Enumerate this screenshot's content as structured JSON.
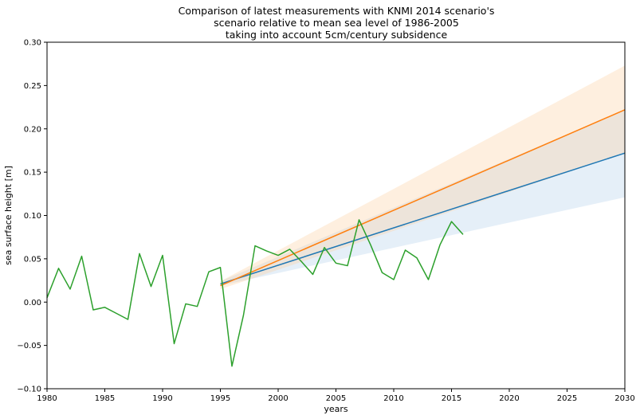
{
  "chart_data": {
    "type": "line",
    "title_lines": [
      "Comparison of latest measurements with KNMI 2014 scenario's",
      "scenario relative to mean sea level of 1986-2005",
      "taking into account 5cm/century subsidence"
    ],
    "xlabel": "years",
    "ylabel": "sea surface height [m]",
    "xlim": [
      1980,
      2030
    ],
    "ylim": [
      -0.1,
      0.3
    ],
    "x_ticks": [
      1980,
      1985,
      1990,
      1995,
      2000,
      2005,
      2010,
      2015,
      2020,
      2025,
      2030
    ],
    "y_ticks": [
      -0.1,
      -0.05,
      0.0,
      0.05,
      0.1,
      0.15,
      0.2,
      0.25,
      0.3
    ],
    "x_tick_labels": [
      "1980",
      "1985",
      "1990",
      "1995",
      "2000",
      "2005",
      "2010",
      "2015",
      "2020",
      "2025",
      "2030"
    ],
    "y_tick_labels": [
      "−0.10",
      "−0.05",
      "0.00",
      "0.05",
      "0.10",
      "0.15",
      "0.20",
      "0.25",
      "0.30"
    ],
    "grid": false,
    "legend": "none",
    "measurements": {
      "color": "#2ca02c",
      "x": [
        1980,
        1981,
        1982,
        1983,
        1984,
        1985,
        1986,
        1987,
        1988,
        1989,
        1990,
        1991,
        1992,
        1993,
        1994,
        1995,
        1996,
        1997,
        1998,
        1999,
        2000,
        2001,
        2002,
        2003,
        2004,
        2005,
        2006,
        2007,
        2008,
        2009,
        2010,
        2011,
        2012,
        2013,
        2014,
        2015,
        2016
      ],
      "y": [
        0.005,
        0.039,
        0.015,
        0.053,
        -0.009,
        -0.006,
        -0.013,
        -0.02,
        0.056,
        0.018,
        0.054,
        -0.048,
        -0.002,
        -0.005,
        0.035,
        0.04,
        -0.074,
        -0.015,
        0.065,
        0.059,
        0.054,
        0.061,
        0.047,
        0.032,
        0.063,
        0.045,
        0.042,
        0.095,
        0.066,
        0.034,
        0.026,
        0.06,
        0.051,
        0.026,
        0.066,
        0.093,
        0.078
      ]
    },
    "scenarios": [
      {
        "color": "#1f77b4",
        "band_color": "#c6dbef",
        "x": [
          1995,
          2030
        ],
        "y": [
          0.021,
          0.172
        ],
        "band_upper": [
          0.024,
          0.222
        ],
        "band_lower": [
          0.019,
          0.121
        ]
      },
      {
        "color": "#ff7f0e",
        "band_color": "#fdd0a2",
        "x": [
          1995,
          2030
        ],
        "y": [
          0.019,
          0.222
        ],
        "band_upper": [
          0.024,
          0.273
        ],
        "band_lower": [
          0.015,
          0.172
        ]
      }
    ]
  }
}
